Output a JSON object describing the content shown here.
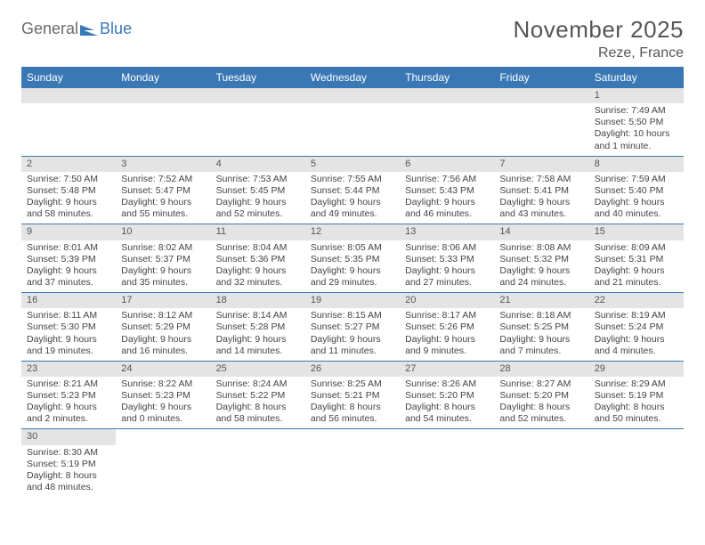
{
  "logo": {
    "word1": "General",
    "word2": "Blue"
  },
  "title": "November 2025",
  "location": "Reze, France",
  "colors": {
    "brand": "#3a78b5",
    "grey_bar": "#e4e4e4",
    "text": "#444444"
  },
  "weekdays": [
    "Sunday",
    "Monday",
    "Tuesday",
    "Wednesday",
    "Thursday",
    "Friday",
    "Saturday"
  ],
  "first_weekday_index": 6,
  "days": [
    {
      "n": 1,
      "sunrise": "7:49 AM",
      "sunset": "5:50 PM",
      "daylight": "10 hours and 1 minute."
    },
    {
      "n": 2,
      "sunrise": "7:50 AM",
      "sunset": "5:48 PM",
      "daylight": "9 hours and 58 minutes."
    },
    {
      "n": 3,
      "sunrise": "7:52 AM",
      "sunset": "5:47 PM",
      "daylight": "9 hours and 55 minutes."
    },
    {
      "n": 4,
      "sunrise": "7:53 AM",
      "sunset": "5:45 PM",
      "daylight": "9 hours and 52 minutes."
    },
    {
      "n": 5,
      "sunrise": "7:55 AM",
      "sunset": "5:44 PM",
      "daylight": "9 hours and 49 minutes."
    },
    {
      "n": 6,
      "sunrise": "7:56 AM",
      "sunset": "5:43 PM",
      "daylight": "9 hours and 46 minutes."
    },
    {
      "n": 7,
      "sunrise": "7:58 AM",
      "sunset": "5:41 PM",
      "daylight": "9 hours and 43 minutes."
    },
    {
      "n": 8,
      "sunrise": "7:59 AM",
      "sunset": "5:40 PM",
      "daylight": "9 hours and 40 minutes."
    },
    {
      "n": 9,
      "sunrise": "8:01 AM",
      "sunset": "5:39 PM",
      "daylight": "9 hours and 37 minutes."
    },
    {
      "n": 10,
      "sunrise": "8:02 AM",
      "sunset": "5:37 PM",
      "daylight": "9 hours and 35 minutes."
    },
    {
      "n": 11,
      "sunrise": "8:04 AM",
      "sunset": "5:36 PM",
      "daylight": "9 hours and 32 minutes."
    },
    {
      "n": 12,
      "sunrise": "8:05 AM",
      "sunset": "5:35 PM",
      "daylight": "9 hours and 29 minutes."
    },
    {
      "n": 13,
      "sunrise": "8:06 AM",
      "sunset": "5:33 PM",
      "daylight": "9 hours and 27 minutes."
    },
    {
      "n": 14,
      "sunrise": "8:08 AM",
      "sunset": "5:32 PM",
      "daylight": "9 hours and 24 minutes."
    },
    {
      "n": 15,
      "sunrise": "8:09 AM",
      "sunset": "5:31 PM",
      "daylight": "9 hours and 21 minutes."
    },
    {
      "n": 16,
      "sunrise": "8:11 AM",
      "sunset": "5:30 PM",
      "daylight": "9 hours and 19 minutes."
    },
    {
      "n": 17,
      "sunrise": "8:12 AM",
      "sunset": "5:29 PM",
      "daylight": "9 hours and 16 minutes."
    },
    {
      "n": 18,
      "sunrise": "8:14 AM",
      "sunset": "5:28 PM",
      "daylight": "9 hours and 14 minutes."
    },
    {
      "n": 19,
      "sunrise": "8:15 AM",
      "sunset": "5:27 PM",
      "daylight": "9 hours and 11 minutes."
    },
    {
      "n": 20,
      "sunrise": "8:17 AM",
      "sunset": "5:26 PM",
      "daylight": "9 hours and 9 minutes."
    },
    {
      "n": 21,
      "sunrise": "8:18 AM",
      "sunset": "5:25 PM",
      "daylight": "9 hours and 7 minutes."
    },
    {
      "n": 22,
      "sunrise": "8:19 AM",
      "sunset": "5:24 PM",
      "daylight": "9 hours and 4 minutes."
    },
    {
      "n": 23,
      "sunrise": "8:21 AM",
      "sunset": "5:23 PM",
      "daylight": "9 hours and 2 minutes."
    },
    {
      "n": 24,
      "sunrise": "8:22 AM",
      "sunset": "5:23 PM",
      "daylight": "9 hours and 0 minutes."
    },
    {
      "n": 25,
      "sunrise": "8:24 AM",
      "sunset": "5:22 PM",
      "daylight": "8 hours and 58 minutes."
    },
    {
      "n": 26,
      "sunrise": "8:25 AM",
      "sunset": "5:21 PM",
      "daylight": "8 hours and 56 minutes."
    },
    {
      "n": 27,
      "sunrise": "8:26 AM",
      "sunset": "5:20 PM",
      "daylight": "8 hours and 54 minutes."
    },
    {
      "n": 28,
      "sunrise": "8:27 AM",
      "sunset": "5:20 PM",
      "daylight": "8 hours and 52 minutes."
    },
    {
      "n": 29,
      "sunrise": "8:29 AM",
      "sunset": "5:19 PM",
      "daylight": "8 hours and 50 minutes."
    },
    {
      "n": 30,
      "sunrise": "8:30 AM",
      "sunset": "5:19 PM",
      "daylight": "8 hours and 48 minutes."
    }
  ],
  "labels": {
    "sunrise": "Sunrise:",
    "sunset": "Sunset:",
    "daylight": "Daylight:"
  }
}
